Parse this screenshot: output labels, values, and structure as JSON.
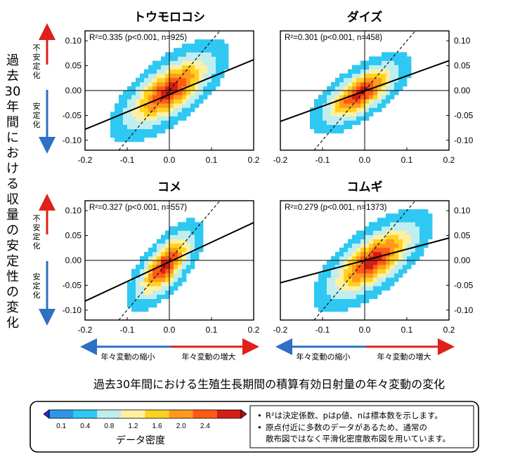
{
  "y_axis_label": "過去30年間における収量の安定性の変化",
  "y_direction_labels": {
    "up": "不安定化",
    "down": "安定化"
  },
  "x_direction_labels": {
    "left": "年々変動の縮小",
    "right": "年々変動の増大"
  },
  "x_caption": "過去30年間における生殖生長期間の積算有効日射量の年々変動の変化",
  "legend": {
    "title": "データ密度",
    "tick_labels": [
      "0.1",
      "0.4",
      "0.8",
      "1.2",
      "1.6",
      "2.0",
      "2.4"
    ],
    "colors": [
      "#2e96e6",
      "#2ec8f2",
      "#c0eef0",
      "#fff0a0",
      "#ffd21e",
      "#ff9a1e",
      "#ff5a14",
      "#d21e14"
    ],
    "notes": [
      "R²は決定係数、pはp値、nは標本数を示します。",
      "原点付近に多数のデータがあるため、通常の散布図ではなく平滑化密度散布図を用いています。"
    ]
  },
  "chart_data": [
    {
      "type": "heatmap",
      "title": "トウモロコシ",
      "stats": "R²=0.335 (p<0.001, n=925)",
      "xlim": [
        -0.2,
        0.2
      ],
      "ylim": [
        -0.12,
        0.12
      ],
      "x_ticks": [
        "-0.2",
        "-0.1",
        "0.0",
        "0.1",
        "0.2"
      ],
      "y_ticks": [
        "0.10",
        "0.05",
        "0.00",
        "-0.05",
        "-0.10"
      ],
      "y_ticks_side": "left",
      "regression_line": {
        "x": [
          -0.2,
          0.2
        ],
        "y": [
          -0.078,
          0.062
        ]
      },
      "one_to_one_line": true,
      "density_center": [
        0.0,
        0.0
      ],
      "density_spread": [
        0.07,
        0.05
      ]
    },
    {
      "type": "heatmap",
      "title": "ダイズ",
      "stats": "R²=0.301 (p<0.001, n=458)",
      "xlim": [
        -0.2,
        0.2
      ],
      "ylim": [
        -0.12,
        0.12
      ],
      "x_ticks": [
        "-0.2",
        "-0.1",
        "0.0",
        "0.1",
        "0.2"
      ],
      "y_ticks": [
        "0.10",
        "0.05",
        "0.00",
        "-0.05",
        "-0.10"
      ],
      "y_ticks_side": "right",
      "regression_line": {
        "x": [
          -0.2,
          0.2
        ],
        "y": [
          -0.062,
          0.06
        ]
      },
      "one_to_one_line": true,
      "density_center": [
        -0.01,
        -0.005
      ],
      "density_spread": [
        0.06,
        0.04
      ]
    },
    {
      "type": "heatmap",
      "title": "コメ",
      "stats": "R²=0.327 (p<0.001, n=557)",
      "xlim": [
        -0.2,
        0.2
      ],
      "ylim": [
        -0.12,
        0.12
      ],
      "x_ticks": [
        "-0.2",
        "-0.1",
        "0.0",
        "0.1",
        "0.2"
      ],
      "y_ticks": [
        "0.10",
        "0.05",
        "0.00",
        "-0.05",
        "-0.10"
      ],
      "y_ticks_side": "left",
      "regression_line": {
        "x": [
          -0.2,
          0.2
        ],
        "y": [
          -0.082,
          0.076
        ]
      },
      "one_to_one_line": true,
      "density_center": [
        -0.01,
        -0.01
      ],
      "density_spread": [
        0.045,
        0.045
      ]
    },
    {
      "type": "heatmap",
      "title": "コムギ",
      "stats": "R²=0.279 (p<0.001, n=1373)",
      "xlim": [
        -0.2,
        0.2
      ],
      "ylim": [
        -0.12,
        0.12
      ],
      "x_ticks": [
        "-0.2",
        "-0.1",
        "0.0",
        "0.1",
        "0.2"
      ],
      "y_ticks": [
        "0.10",
        "0.05",
        "0.00",
        "-0.05",
        "-0.10"
      ],
      "y_ticks_side": "right",
      "regression_line": {
        "x": [
          -0.2,
          0.2
        ],
        "y": [
          -0.045,
          0.045
        ]
      },
      "one_to_one_line": true,
      "density_center": [
        0.02,
        0.0
      ],
      "density_spread": [
        0.07,
        0.05
      ]
    }
  ]
}
